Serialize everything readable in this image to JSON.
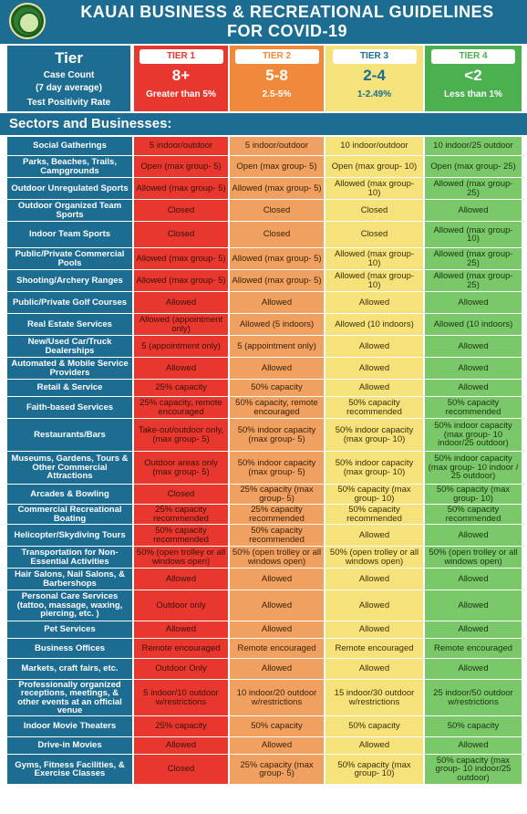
{
  "header": {
    "title_line1": "KAUAI BUSINESS & RECREATIONAL GUIDELINES",
    "title_line2": "FOR COVID-19",
    "seal_icon": "county-seal-icon"
  },
  "tier_panel": {
    "tier_word": "Tier",
    "case_count_label": "Case Count",
    "case_count_sub": "(7 day average)",
    "positivity_label": "Test Positivity Rate"
  },
  "tiers": [
    {
      "label": "TIER 1",
      "count": "8+",
      "range": "Greater than 5%",
      "color": "#e8372e",
      "label_color": "#e8372e"
    },
    {
      "label": "TIER 2",
      "count": "5-8",
      "range": "2.5-5%",
      "color": "#f08a3a",
      "label_color": "#f08a3a"
    },
    {
      "label": "TIER 3",
      "count": "2-4",
      "range": "1-2.49%",
      "color": "#f6e27a",
      "label_color": "#1d6c92"
    },
    {
      "label": "TIER 4",
      "count": "<2",
      "range": "Less than 1%",
      "color": "#4caf50",
      "label_color": "#4caf50"
    }
  ],
  "sectors_heading": "Sectors and Businesses:",
  "rows": [
    {
      "sector": "Social Gatherings",
      "t1": "5 indoor/outdoor",
      "t2": "5 indoor/outdoor",
      "t3": "10 indoor/outdoor",
      "t4": "10 indoor/25 outdoor"
    },
    {
      "sector": "Parks, Beaches, Trails, Campgrounds",
      "t1": "Open (max group- 5)",
      "t2": "Open (max group- 5)",
      "t3": "Open (max group- 10)",
      "t4": "Open (max group- 25)"
    },
    {
      "sector": "Outdoor Unregulated Sports",
      "t1": "Allowed (max group- 5)",
      "t2": "Allowed (max group- 5)",
      "t3": "Allowed (max group- 10)",
      "t4": "Allowed (max group- 25)"
    },
    {
      "sector": "Outdoor Organized Team Sports",
      "t1": "Closed",
      "t2": "Closed",
      "t3": "Closed",
      "t4": "Allowed"
    },
    {
      "sector": "Indoor Team Sports",
      "t1": "Closed",
      "t2": "Closed",
      "t3": "Closed",
      "t4": "Allowed (max group- 10)"
    },
    {
      "sector": "Public/Private Commercial Pools",
      "t1": "Allowed (max group- 5)",
      "t2": "Allowed (max group- 5)",
      "t3": "Allowed (max group- 10)",
      "t4": "Allowed (max group- 25)"
    },
    {
      "sector": "Shooting/Archery Ranges",
      "t1": "Allowed (max group- 5)",
      "t2": "Allowed (max group- 5)",
      "t3": "Allowed (max group- 10)",
      "t4": "Allowed (max group- 25)"
    },
    {
      "sector": "Public/Private Golf Courses",
      "t1": "Allowed",
      "t2": "Allowed",
      "t3": "Allowed",
      "t4": "Allowed"
    },
    {
      "sector": "Real Estate Services",
      "t1": "Allowed (appointment only)",
      "t2": "Allowed (5 indoors)",
      "t3": "Allowed (10 indoors)",
      "t4": "Allowed (10 indoors)"
    },
    {
      "sector": "New/Used Car/Truck Dealerships",
      "t1": "5 (appointment only)",
      "t2": "5 (appointment only)",
      "t3": "Allowed",
      "t4": "Allowed"
    },
    {
      "sector": "Automated & Mobile Service Providers",
      "t1": "Allowed",
      "t2": "Allowed",
      "t3": "Allowed",
      "t4": "Allowed"
    },
    {
      "sector": "Retail & Service",
      "t1": "25% capacity",
      "t2": "50% capacity",
      "t3": "Allowed",
      "t4": "Allowed"
    },
    {
      "sector": "Faith-based Services",
      "t1": "25% capacity, remote encouraged",
      "t2": "50% capacity, remote encouraged",
      "t3": "50% capacity recommended",
      "t4": "50% capacity recommended"
    },
    {
      "sector": "Restaurants/Bars",
      "t1": "Take-out/outdoor only, (max group- 5)",
      "t2": "50% indoor capacity (max group- 5)",
      "t3": "50% indoor capacity (max group- 10)",
      "t4": "50% indoor capacity (max group- 10 indoor/25 outdoor)"
    },
    {
      "sector": "Museums, Gardens, Tours & Other Commercial Attractions",
      "t1": "Outdoor areas only (max group- 5)",
      "t2": "50% indoor capacity (max group- 5)",
      "t3": "50% indoor capacity (max group- 10)",
      "t4": "50% indoor capacity (max group- 10 indoor / 25 outdoor)"
    },
    {
      "sector": "Arcades & Bowling",
      "t1": "Closed",
      "t2": "25% capacity (max group- 5)",
      "t3": "50% capacity (max group- 10)",
      "t4": "50% capacity (max group- 10)"
    },
    {
      "sector": "Commercial Recreational Boating",
      "t1": "25% capacity recommended",
      "t2": "25% capacity recommended",
      "t3": "50% capacity recommended",
      "t4": "50% capacity recommended"
    },
    {
      "sector": "Helicopter/Skydiving Tours",
      "t1": "50% capacity recommended",
      "t2": "50% capacity recommended",
      "t3": "Allowed",
      "t4": "Allowed"
    },
    {
      "sector": "Transportation for Non-Essential Activities",
      "t1": "50% (open trolley or all windows open)",
      "t2": "50% (open trolley or all windows open)",
      "t3": "50% (open trolley or all windows open)",
      "t4": "50% (open trolley or all windows open)"
    },
    {
      "sector": "Hair Salons, Nail Salons, & Barbershops",
      "t1": "Allowed",
      "t2": "Allowed",
      "t3": "Allowed",
      "t4": "Allowed"
    },
    {
      "sector": "Personal Care Services (tattoo, massage, waxing, piercing, etc. )",
      "t1": "Outdoor only",
      "t2": "Allowed",
      "t3": "Allowed",
      "t4": "Allowed"
    },
    {
      "sector": "Pet Services",
      "t1": "Allowed",
      "t2": "Allowed",
      "t3": "Allowed",
      "t4": "Allowed"
    },
    {
      "sector": "Business Offices",
      "t1": "Remote encouraged",
      "t2": "Remote encouraged",
      "t3": "Remote encouraged",
      "t4": "Remote encouraged"
    },
    {
      "sector": "Markets, craft fairs, etc.",
      "t1": "Outdoor Only",
      "t2": "Allowed",
      "t3": "Allowed",
      "t4": "Allowed"
    },
    {
      "sector": "Professionally organized receptions, meetings, & other events at an official venue",
      "t1": "5 indoor/10 outdoor w/restrictions",
      "t2": "10 indoor/20 outdoor w/restrictions",
      "t3": "15 indoor/30 outdoor w/restrictions",
      "t4": "25 indoor/50 outdoor w/restrictions"
    },
    {
      "sector": "Indoor Movie Theaters",
      "t1": "25% capacity",
      "t2": "50% capacity",
      "t3": "50% capacity",
      "t4": "50% capacity"
    },
    {
      "sector": "Drive-in Movies",
      "t1": "Allowed",
      "t2": "Allowed",
      "t3": "Allowed",
      "t4": "Allowed"
    },
    {
      "sector": "Gyms, Fitness Facilities, & Exercise Classes",
      "t1": "Closed",
      "t2": "25% capacity (max group- 5)",
      "t3": "50% capacity (max group- 10)",
      "t4": "50% capacity (max group- 10 indoor/25 outdoor)"
    }
  ]
}
